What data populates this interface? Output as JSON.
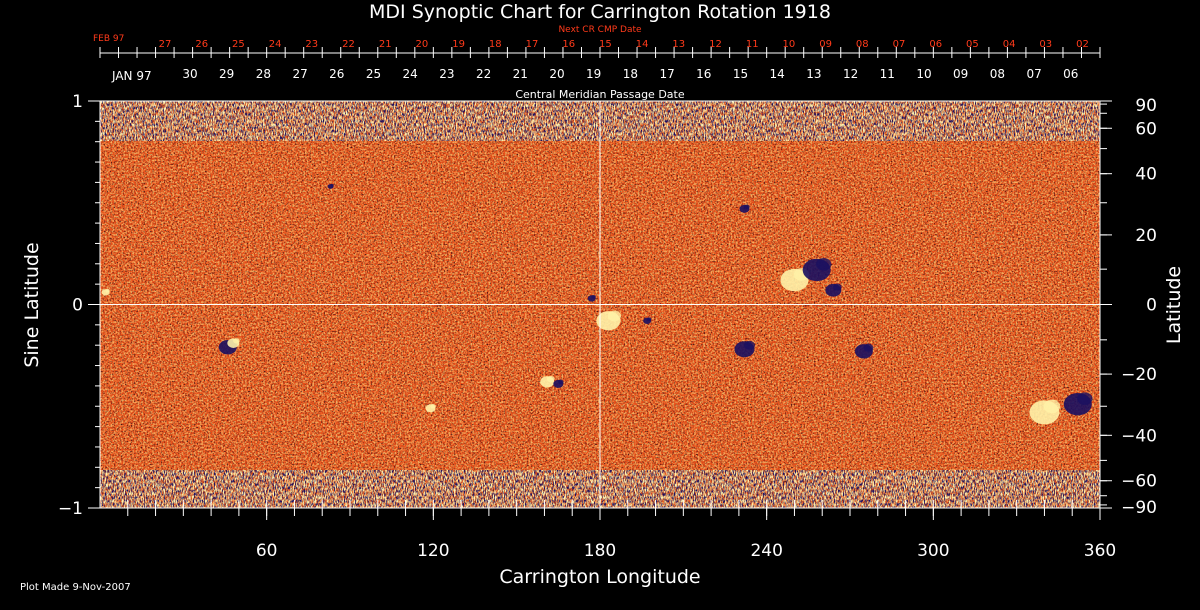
{
  "colors": {
    "background": "#000000",
    "axis": "#ffffff",
    "next_cr_dates": "#ff3a1a",
    "field_base": "#e8501a",
    "field_positive": "#fff2a8",
    "field_negative": "#1a1060"
  },
  "chart_data": {
    "type": "heatmap",
    "title": "MDI Synoptic Chart for Carrington Rotation 1918",
    "xlabel": "Carrington Longitude",
    "ylabel_left": "Sine Latitude",
    "ylabel_right": "Latitude",
    "xlim": [
      0,
      360
    ],
    "ylim": [
      -1,
      1
    ],
    "x_ticks": [
      60,
      120,
      180,
      240,
      300,
      360
    ],
    "y_ticks_left": [
      {
        "value": 1,
        "label": "1"
      },
      {
        "value": 0,
        "label": "0"
      },
      {
        "value": -1,
        "label": "−1"
      }
    ],
    "y_ticks_right": [
      {
        "lat": 90,
        "label": "90"
      },
      {
        "lat": 60,
        "label": "60"
      },
      {
        "lat": 40,
        "label": "40"
      },
      {
        "lat": 20,
        "label": "20"
      },
      {
        "lat": 0,
        "label": "0"
      },
      {
        "lat": -20,
        "label": "−20"
      },
      {
        "lat": -40,
        "label": "−40"
      },
      {
        "lat": -60,
        "label": "−60"
      },
      {
        "lat": -90,
        "label": "−90"
      }
    ],
    "grid": {
      "lon_line": 180,
      "sinlat_line": 0
    },
    "top_axis_label": "Central Meridian Passage Date",
    "next_cr_label": "Next CR CMP Date",
    "next_cr_month": "FEB 97",
    "next_cr_dates": [
      "27",
      "26",
      "25",
      "24",
      "23",
      "22",
      "21",
      "20",
      "19",
      "18",
      "17",
      "16",
      "15",
      "14",
      "13",
      "12",
      "11",
      "10",
      "09",
      "08",
      "07",
      "06",
      "05",
      "04",
      "03",
      "02"
    ],
    "cmp_month": "JAN 97",
    "cmp_dates": [
      "30",
      "29",
      "28",
      "27",
      "26",
      "25",
      "24",
      "23",
      "22",
      "21",
      "20",
      "19",
      "18",
      "17",
      "16",
      "15",
      "14",
      "13",
      "12",
      "11",
      "10",
      "09",
      "08",
      "07",
      "06"
    ],
    "active_regions": [
      {
        "lon": 46,
        "sinlat": -0.21,
        "polarity": "negative",
        "r": 9
      },
      {
        "lon": 48,
        "sinlat": -0.19,
        "polarity": "positive",
        "r": 6
      },
      {
        "lon": 83,
        "sinlat": 0.58,
        "polarity": "negative",
        "r": 3
      },
      {
        "lon": 119,
        "sinlat": -0.51,
        "polarity": "positive",
        "r": 5
      },
      {
        "lon": 161,
        "sinlat": -0.38,
        "polarity": "positive",
        "r": 7
      },
      {
        "lon": 165,
        "sinlat": -0.39,
        "polarity": "negative",
        "r": 5
      },
      {
        "lon": 177,
        "sinlat": 0.03,
        "polarity": "negative",
        "r": 4
      },
      {
        "lon": 183,
        "sinlat": -0.08,
        "polarity": "positive",
        "r": 12
      },
      {
        "lon": 197,
        "sinlat": -0.08,
        "polarity": "negative",
        "r": 4
      },
      {
        "lon": 232,
        "sinlat": 0.47,
        "polarity": "negative",
        "r": 5
      },
      {
        "lon": 232,
        "sinlat": -0.22,
        "polarity": "negative",
        "r": 10
      },
      {
        "lon": 250,
        "sinlat": 0.12,
        "polarity": "positive",
        "r": 14
      },
      {
        "lon": 258,
        "sinlat": 0.17,
        "polarity": "negative",
        "r": 14
      },
      {
        "lon": 264,
        "sinlat": 0.07,
        "polarity": "negative",
        "r": 8
      },
      {
        "lon": 275,
        "sinlat": -0.23,
        "polarity": "negative",
        "r": 9
      },
      {
        "lon": 340,
        "sinlat": -0.53,
        "polarity": "positive",
        "r": 15
      },
      {
        "lon": 352,
        "sinlat": -0.49,
        "polarity": "negative",
        "r": 14
      },
      {
        "lon": 2,
        "sinlat": 0.06,
        "polarity": "positive",
        "r": 4
      }
    ]
  },
  "footer": {
    "plot_made": "Plot Made  9-Nov-2007"
  }
}
